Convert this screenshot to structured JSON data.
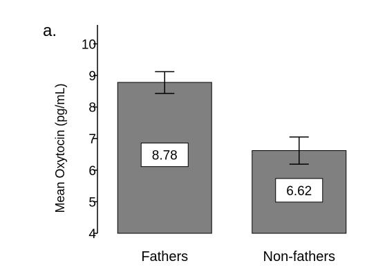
{
  "chart_data": {
    "type": "bar",
    "panel_label": "a.",
    "title": "",
    "xlabel": "",
    "ylabel": "Mean Oxytocin (pg/mL)",
    "ylim": [
      4,
      10.6
    ],
    "yticks": [
      4,
      5,
      6,
      7,
      8,
      9,
      10
    ],
    "categories": [
      "Fathers",
      "Non-fathers"
    ],
    "values": [
      8.78,
      6.62
    ],
    "value_labels": [
      "8.78",
      "6.62"
    ],
    "error_bars": [
      {
        "lower": 8.43,
        "upper": 9.12
      },
      {
        "lower": 6.19,
        "upper": 7.05
      }
    ],
    "bar_color": "#808080",
    "grid": false,
    "legend": "none"
  }
}
